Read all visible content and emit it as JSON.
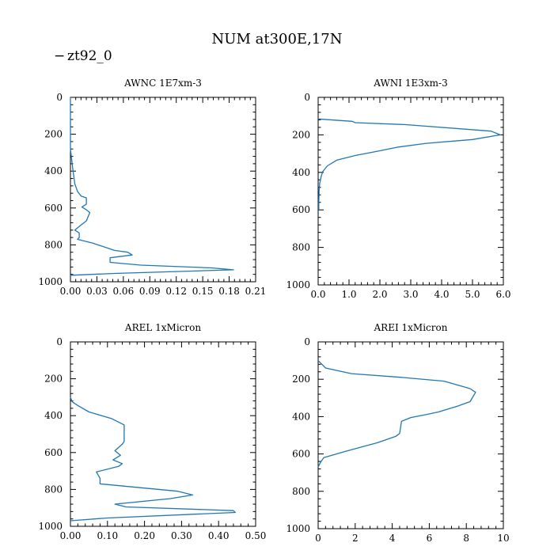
{
  "figure": {
    "title": "NUM at300E,17N",
    "legend": {
      "symbol": "−",
      "label": "zt92_0",
      "color": "#1f77b4"
    }
  },
  "chart_data": [
    {
      "type": "line",
      "title": "AWNC  1E7xm-3",
      "xlim": [
        0,
        0.21
      ],
      "ylim": [
        1000,
        0
      ],
      "xticks": [
        "0.00",
        "0.03",
        "0.06",
        "0.09",
        "0.12",
        "0.15",
        "0.18",
        "0.21"
      ],
      "yticks": [
        "0",
        "200",
        "400",
        "600",
        "800",
        "1000"
      ],
      "series": [
        {
          "name": "zt92_0",
          "color": "#1f77b4",
          "x": [
            0,
            0,
            0.003,
            0.005,
            0.008,
            0.012,
            0.018,
            0.018,
            0.013,
            0.018,
            0.022,
            0.018,
            0.01,
            0.005,
            0.01,
            0.01,
            0.008,
            0.025,
            0.05,
            0.065,
            0.07,
            0.045,
            0.045,
            0.08,
            0.16,
            0.185,
            0.05,
            0.0
          ],
          "y": [
            0,
            280,
            400,
            470,
            510,
            535,
            545,
            580,
            595,
            610,
            625,
            670,
            700,
            720,
            735,
            760,
            770,
            790,
            830,
            840,
            855,
            870,
            895,
            910,
            925,
            935,
            955,
            965
          ]
        }
      ]
    },
    {
      "type": "line",
      "title": "AWNI  1E3xm-3",
      "xlim": [
        0,
        6.0
      ],
      "ylim": [
        1000,
        0
      ],
      "xticks": [
        "0.0",
        "1.0",
        "2.0",
        "3.0",
        "4.0",
        "5.0",
        "6.0"
      ],
      "yticks": [
        "0",
        "200",
        "400",
        "600",
        "800",
        "1000"
      ],
      "series": [
        {
          "name": "zt92_0",
          "color": "#1f77b4",
          "x": [
            0,
            1.1,
            1.2,
            2.8,
            5.6,
            5.9,
            5.0,
            3.5,
            2.6,
            2.0,
            1.2,
            0.6,
            0.3,
            0.15,
            0.1,
            0.05,
            0.03,
            0.02,
            0.02
          ],
          "y": [
            115,
            128,
            135,
            145,
            180,
            200,
            225,
            245,
            265,
            285,
            310,
            335,
            365,
            395,
            420,
            460,
            500,
            560,
            600
          ]
        }
      ]
    },
    {
      "type": "line",
      "title": "AREL  1xMicron",
      "xlim": [
        0,
        0.5
      ],
      "ylim": [
        1000,
        0
      ],
      "xticks": [
        "0.00",
        "0.10",
        "0.20",
        "0.30",
        "0.40",
        "0.50"
      ],
      "yticks": [
        "0",
        "200",
        "400",
        "600",
        "800",
        "1000"
      ],
      "series": [
        {
          "name": "zt92_0",
          "color": "#1f77b4",
          "x": [
            0,
            0.005,
            0.02,
            0.05,
            0.11,
            0.14,
            0.145,
            0.145,
            0.14,
            0.12,
            0.135,
            0.115,
            0.14,
            0.13,
            0.07,
            0.08,
            0.08,
            0.29,
            0.33,
            0.27,
            0.12,
            0.15,
            0.44,
            0.445,
            0.1,
            0.0
          ],
          "y": [
            300,
            325,
            345,
            380,
            415,
            445,
            450,
            540,
            555,
            590,
            615,
            640,
            660,
            675,
            705,
            740,
            770,
            810,
            830,
            850,
            880,
            895,
            915,
            925,
            955,
            970
          ]
        }
      ]
    },
    {
      "type": "line",
      "title": "AREI  1xMicron",
      "xlim": [
        0,
        10
      ],
      "ylim": [
        1000,
        0
      ],
      "xticks": [
        "0",
        "2",
        "4",
        "6",
        "8",
        "10"
      ],
      "yticks": [
        "0",
        "200",
        "400",
        "600",
        "800",
        "1000"
      ],
      "series": [
        {
          "name": "zt92_0",
          "color": "#1f77b4",
          "x": [
            0,
            0.4,
            1.8,
            4.5,
            6.8,
            8.2,
            8.5,
            8.2,
            7.5,
            6.5,
            5.8,
            5.0,
            4.5,
            4.4,
            4.2,
            3.2,
            1.5,
            0.3,
            0.1,
            0.05,
            0.0
          ],
          "y": [
            100,
            140,
            170,
            190,
            210,
            250,
            270,
            320,
            345,
            375,
            390,
            405,
            425,
            490,
            505,
            540,
            585,
            620,
            650,
            660,
            670
          ]
        }
      ]
    }
  ]
}
